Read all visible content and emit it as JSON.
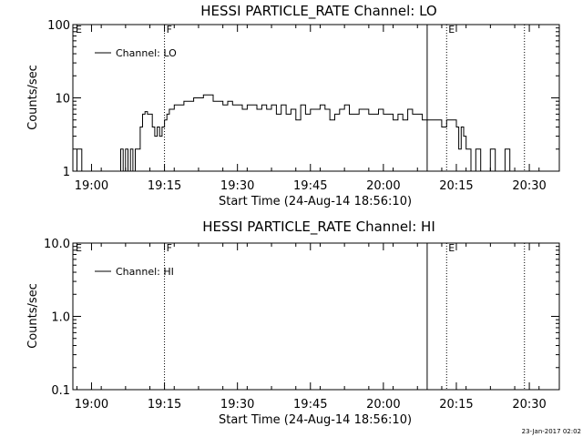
{
  "footer_stamp": "23-Jan-2017 02:02",
  "chart_data": [
    {
      "type": "line",
      "title": "HESSI PARTICLE_RATE Channel: LO",
      "xlabel": "Start Time (24-Aug-14 18:56:10)",
      "ylabel": "Counts/sec",
      "y_scale": "log",
      "ylim": [
        1,
        100
      ],
      "y_ticks": [
        "1",
        "10",
        "100"
      ],
      "xlim": [
        "18:56:10",
        "20:36:10"
      ],
      "x_ticks": [
        "19:00",
        "19:15",
        "19:30",
        "19:45",
        "20:00",
        "20:15",
        "20:30"
      ],
      "legend": {
        "label": "Channel: LO",
        "position": "top-left"
      },
      "markers": [
        {
          "time": "19:15:00",
          "label": "F",
          "style": "dotted"
        },
        {
          "time": "20:09:00",
          "label": "",
          "style": "solid"
        },
        {
          "time": "20:13:00",
          "label": "E",
          "style": "dotted"
        },
        {
          "time": "20:29:00",
          "label": "",
          "style": "dotted"
        }
      ],
      "series": [
        {
          "name": "Channel: LO",
          "x": [
            "18:56:10",
            "18:56:30",
            "18:57:00",
            "18:58:00",
            "18:59:00",
            "19:00:00",
            "19:01:00",
            "19:02:00",
            "19:03:00",
            "19:04:00",
            "19:05:00",
            "19:05:30",
            "19:06:00",
            "19:06:30",
            "19:07:00",
            "19:07:30",
            "19:08:00",
            "19:08:30",
            "19:09:00",
            "19:09:30",
            "19:10:00",
            "19:10:30",
            "19:11:00",
            "19:11:30",
            "19:12:00",
            "19:12:30",
            "19:13:00",
            "19:13:30",
            "19:14:00",
            "19:14:30",
            "19:15:00",
            "19:15:30",
            "19:16:00",
            "19:17:00",
            "19:18:00",
            "19:19:00",
            "19:20:00",
            "19:21:00",
            "19:22:00",
            "19:23:00",
            "19:24:00",
            "19:25:00",
            "19:26:00",
            "19:27:00",
            "19:28:00",
            "19:29:00",
            "19:30:00",
            "19:31:00",
            "19:32:00",
            "19:33:00",
            "19:34:00",
            "19:35:00",
            "19:36:00",
            "19:37:00",
            "19:38:00",
            "19:39:00",
            "19:40:00",
            "19:41:00",
            "19:42:00",
            "19:43:00",
            "19:44:00",
            "19:45:00",
            "19:46:00",
            "19:47:00",
            "19:48:00",
            "19:49:00",
            "19:50:00",
            "19:51:00",
            "19:52:00",
            "19:53:00",
            "19:54:00",
            "19:55:00",
            "19:56:00",
            "19:57:00",
            "19:58:00",
            "19:59:00",
            "20:00:00",
            "20:01:00",
            "20:02:00",
            "20:03:00",
            "20:04:00",
            "20:05:00",
            "20:06:00",
            "20:07:00",
            "20:08:00",
            "20:09:00",
            "20:10:00",
            "20:11:00",
            "20:12:00",
            "20:13:00",
            "20:14:00",
            "20:15:00",
            "20:15:30",
            "20:16:00",
            "20:16:30",
            "20:17:00",
            "20:18:00",
            "20:19:00",
            "20:20:00",
            "20:21:00",
            "20:22:00",
            "20:23:00",
            "20:24:00",
            "20:25:00",
            "20:26:00",
            "20:27:00",
            "20:28:00",
            "20:29:00",
            "20:30:00",
            "20:31:00",
            "20:32:00",
            "20:33:00",
            "20:34:00",
            "20:35:00",
            "20:36:00"
          ],
          "y": [
            1,
            1,
            2,
            1,
            0.8,
            0.8,
            0.8,
            0.8,
            0.8,
            0.8,
            0.8,
            1,
            2,
            1,
            2,
            1,
            2,
            1,
            2,
            2,
            4,
            6,
            6.5,
            6,
            6,
            4,
            3,
            4,
            3,
            4,
            5,
            6,
            7,
            8,
            8,
            9,
            9,
            10,
            10,
            11,
            11,
            9,
            9,
            8,
            9,
            8,
            8,
            7,
            8,
            8,
            7,
            8,
            7,
            8,
            6,
            8,
            6,
            7,
            5,
            8,
            6,
            7,
            7,
            8,
            7,
            5,
            6,
            7,
            8,
            6,
            6,
            7,
            7,
            6,
            6,
            7,
            6,
            6,
            5,
            6,
            5,
            7,
            6,
            6,
            5,
            5,
            5,
            5,
            4,
            5,
            5,
            4,
            2,
            4,
            3,
            2,
            1,
            2,
            1,
            1,
            2,
            1,
            1,
            2,
            1,
            1,
            0.8,
            0.8,
            0.8,
            0.8,
            0.8,
            0.8,
            0.8,
            0.8,
            0.8
          ]
        }
      ]
    },
    {
      "type": "line",
      "title": "HESSI PARTICLE_RATE Channel: HI",
      "xlabel": "Start Time (24-Aug-14 18:56:10)",
      "ylabel": "Counts/sec",
      "y_scale": "log",
      "ylim": [
        0.1,
        10
      ],
      "y_ticks": [
        "0.1",
        "1.0",
        "10.0"
      ],
      "xlim": [
        "18:56:10",
        "20:36:10"
      ],
      "x_ticks": [
        "19:00",
        "19:15",
        "19:30",
        "19:45",
        "20:00",
        "20:15",
        "20:30"
      ],
      "legend": {
        "label": "Channel: HI",
        "position": "top-left"
      },
      "markers": [
        {
          "time": "19:15:00",
          "label": "F",
          "style": "dotted"
        },
        {
          "time": "20:09:00",
          "label": "",
          "style": "solid"
        },
        {
          "time": "20:13:00",
          "label": "E",
          "style": "dotted"
        },
        {
          "time": "20:29:00",
          "label": "",
          "style": "dotted"
        }
      ],
      "series": [
        {
          "name": "Channel: HI",
          "x": [],
          "y": []
        }
      ]
    }
  ]
}
